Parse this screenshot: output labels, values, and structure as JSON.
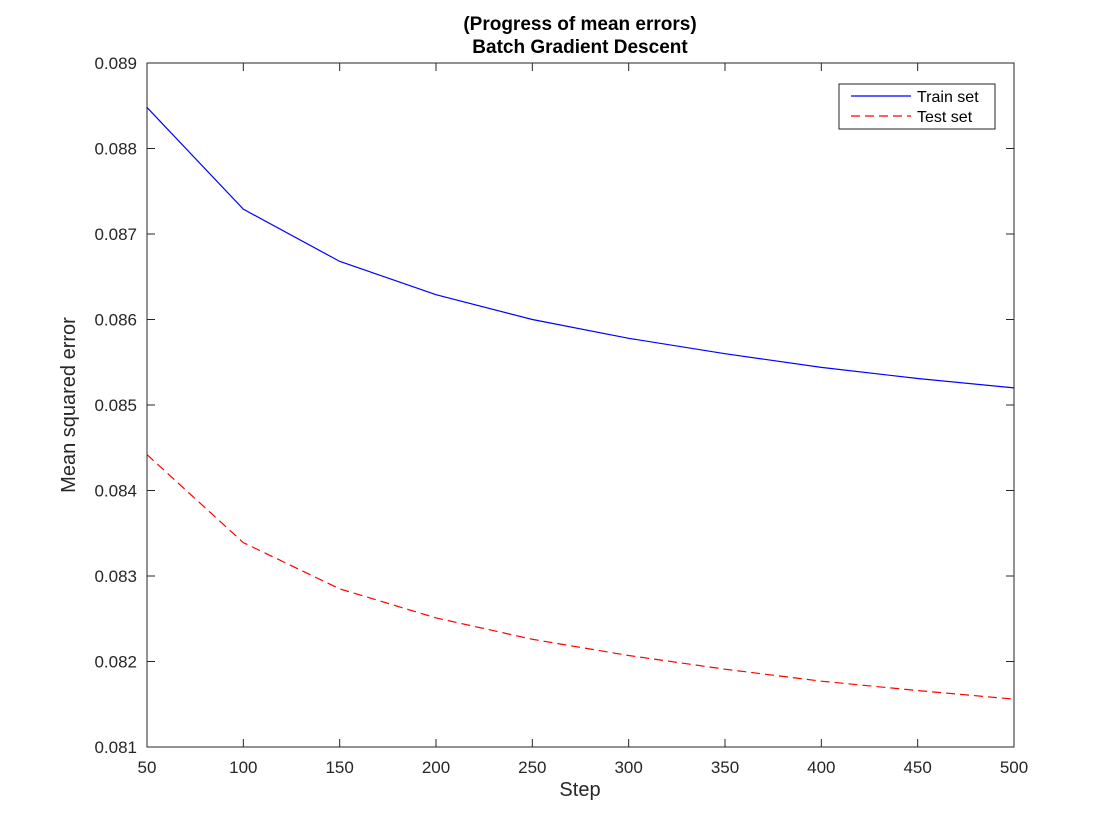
{
  "chart_data": {
    "type": "line",
    "title": [
      "(Progress of mean errors)",
      "Batch Gradient Descent"
    ],
    "xlabel": "Step",
    "ylabel": "Mean squared error",
    "xlim": [
      50,
      500
    ],
    "ylim": [
      0.081,
      0.089
    ],
    "xticks": [
      50,
      100,
      150,
      200,
      250,
      300,
      350,
      400,
      450,
      500
    ],
    "xtick_labels": [
      "50",
      "100",
      "150",
      "200",
      "250",
      "300",
      "350",
      "400",
      "450",
      "500"
    ],
    "yticks": [
      0.081,
      0.082,
      0.083,
      0.084,
      0.085,
      0.086,
      0.087,
      0.088,
      0.089
    ],
    "ytick_labels": [
      "0.081",
      "0.082",
      "0.083",
      "0.084",
      "0.085",
      "0.086",
      "0.087",
      "0.088",
      "0.089"
    ],
    "grid": false,
    "legend_position": "top-right",
    "x": [
      50,
      100,
      150,
      200,
      250,
      300,
      350,
      400,
      450,
      500
    ],
    "series": [
      {
        "name": "Train set",
        "color": "#0000ff",
        "style": "solid",
        "values": [
          0.08848,
          0.08729,
          0.08668,
          0.08629,
          0.086,
          0.08578,
          0.0856,
          0.08544,
          0.08531,
          0.0852
        ]
      },
      {
        "name": "Test set",
        "color": "#ff0000",
        "style": "dashed",
        "values": [
          0.08442,
          0.08339,
          0.08285,
          0.08251,
          0.08226,
          0.08207,
          0.08191,
          0.08177,
          0.08166,
          0.08156
        ]
      }
    ]
  }
}
